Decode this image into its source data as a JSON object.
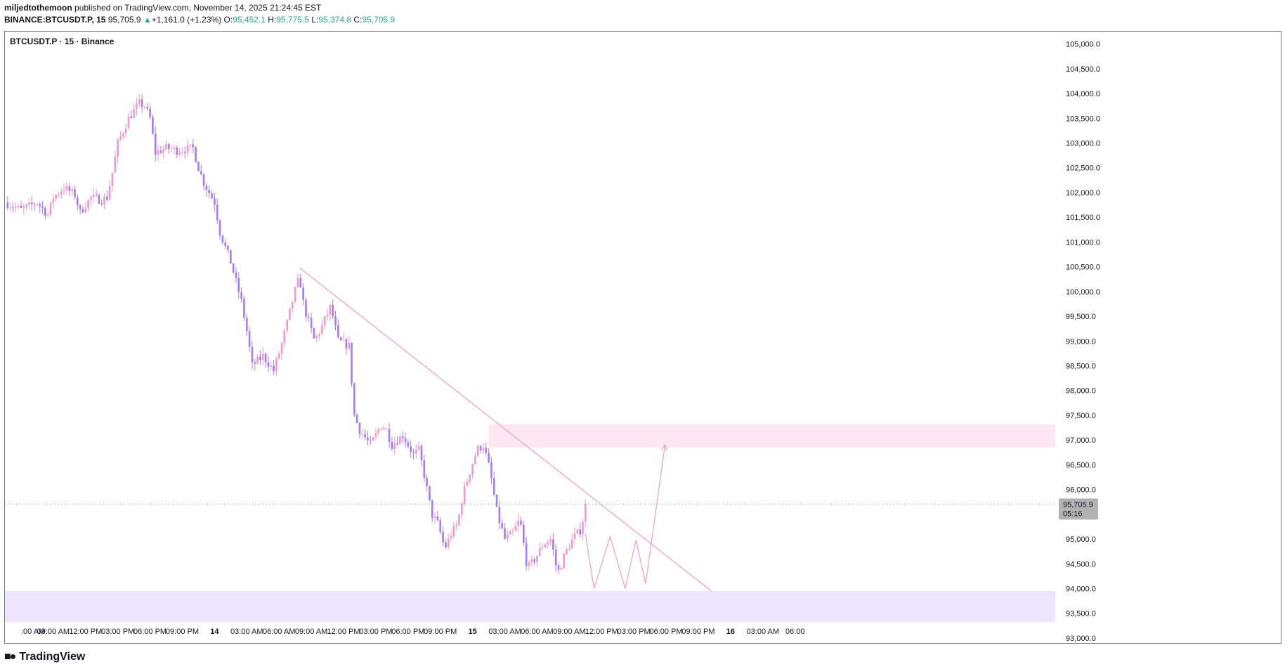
{
  "header": {
    "author": "miljedtothemoon",
    "published_text": "published on TradingView.com, November 14, 2025 21:24:45 EST",
    "symbol": "BINANCE:BTCUSDT.P, 15",
    "last": "95,705.9",
    "change_arrow": "▲",
    "change": "+1,161.0 (+1.23%)",
    "o_label": "O:",
    "o_value": "95,452.1",
    "h_label": "H:",
    "h_value": "95,775.5",
    "l_label": "L:",
    "l_value": "95,374.8",
    "c_label": "C:",
    "c_value": "95,705.9"
  },
  "footer": {
    "brand": "TradingView",
    "logo_icon": "tradingview-logo-icon"
  },
  "colors": {
    "candle_up": "#f29ac9",
    "candle_down": "#a67ef0",
    "trendline": "#f29ac9",
    "resistance_zone": "#fde7f1",
    "support_zone": "#ede5fc",
    "price_tag": "#b2b2b2",
    "grid_text": "#131722"
  },
  "chart_data": {
    "type": "candlestick",
    "title": "BTCUSDT.P · 15 · Binance",
    "timeframe": "15",
    "exchange": "Binance",
    "y_range": [
      92900,
      105250
    ],
    "y_ticks": [
      93000,
      93500,
      94000,
      94500,
      95000,
      95500,
      96000,
      96500,
      97000,
      97500,
      98000,
      98500,
      99000,
      99500,
      100000,
      100500,
      101000,
      101500,
      102000,
      102500,
      103000,
      103500,
      104000,
      104500,
      105000
    ],
    "y_tick_labels": [
      "93,000.0",
      "93,500.0",
      "94,000.0",
      "94,500.0",
      "95,000.0",
      "95,500.0",
      "96,000.0",
      "96,500.0",
      "97,000.0",
      "97,500.0",
      "98,000.0",
      "98,500.0",
      "99,000.0",
      "99,500.0",
      "100,000.0",
      "100,500.0",
      "101,000.0",
      "101,500.0",
      "102,000.0",
      "102,500.0",
      "103,000.0",
      "103,500.0",
      "104,000.0",
      "104,500.0",
      "105,000.0"
    ],
    "x_range_hours": [
      -19.5,
      78.2
    ],
    "x_ticks": [
      {
        "h": -18,
        "label": ":00 AM"
      },
      {
        "h": -15,
        "label": "09:00 AM"
      },
      {
        "h": -12,
        "label": "12:00 PM"
      },
      {
        "h": -9,
        "label": "03:00 PM"
      },
      {
        "h": -6,
        "label": "06:00 PM"
      },
      {
        "h": -3,
        "label": "09:00 PM"
      },
      {
        "h": 0,
        "label": "14",
        "bold": true
      },
      {
        "h": 3,
        "label": "03:00 AM"
      },
      {
        "h": 6,
        "label": "06:00 AM"
      },
      {
        "h": 9,
        "label": "09:00 AM"
      },
      {
        "h": 12,
        "label": "12:00 PM"
      },
      {
        "h": 15,
        "label": "03:00 PM"
      },
      {
        "h": 18,
        "label": "06:00 PM"
      },
      {
        "h": 21,
        "label": "09:00 PM"
      },
      {
        "h": 24,
        "label": "15",
        "bold": true
      },
      {
        "h": 27,
        "label": "03:00 AM"
      },
      {
        "h": 30,
        "label": "06:00 AM"
      },
      {
        "h": 33,
        "label": "09:00 AM"
      },
      {
        "h": 36,
        "label": "12:00 PM"
      },
      {
        "h": 39,
        "label": "03:00 PM"
      },
      {
        "h": 42,
        "label": "06:00 PM"
      },
      {
        "h": 45,
        "label": "09:00 PM"
      },
      {
        "h": 48,
        "label": "16",
        "bold": true
      },
      {
        "h": 51,
        "label": "03:00 AM"
      },
      {
        "h": 54,
        "label": "06:00"
      }
    ],
    "close_anchors": [
      [
        -19.5,
        101800
      ],
      [
        -18,
        101650
      ],
      [
        -16.5,
        101800
      ],
      [
        -15.5,
        101550
      ],
      [
        -15,
        101900
      ],
      [
        -14,
        102100
      ],
      [
        -13,
        101950
      ],
      [
        -12.5,
        101600
      ],
      [
        -11.5,
        101900
      ],
      [
        -10.5,
        101850
      ],
      [
        -10,
        101900
      ],
      [
        -9.5,
        102400
      ],
      [
        -9,
        103000
      ],
      [
        -8,
        103500
      ],
      [
        -7,
        103800
      ],
      [
        -6.5,
        103750
      ],
      [
        -6,
        103500
      ],
      [
        -5.5,
        102800
      ],
      [
        -4.5,
        102900
      ],
      [
        -3.5,
        102850
      ],
      [
        -2,
        102900
      ],
      [
        -1.5,
        102500
      ],
      [
        -1,
        102200
      ],
      [
        -0.5,
        102000
      ],
      [
        0,
        101800
      ],
      [
        0.5,
        101200
      ],
      [
        1.5,
        100600
      ],
      [
        2.5,
        99800
      ],
      [
        3,
        99200
      ],
      [
        3.5,
        98500
      ],
      [
        4.5,
        98700
      ],
      [
        5.5,
        98400
      ],
      [
        6.2,
        98900
      ],
      [
        6.8,
        99400
      ],
      [
        7.4,
        99950
      ],
      [
        7.9,
        100300
      ],
      [
        8.3,
        99700
      ],
      [
        9.3,
        99000
      ],
      [
        10,
        99300
      ],
      [
        10.8,
        99700
      ],
      [
        11.5,
        99000
      ],
      [
        12.5,
        98900
      ],
      [
        13,
        97500
      ],
      [
        13.5,
        97200
      ],
      [
        14.5,
        96900
      ],
      [
        15.5,
        97300
      ],
      [
        16,
        97200
      ],
      [
        16.5,
        96900
      ],
      [
        17.5,
        97100
      ],
      [
        18.5,
        96700
      ],
      [
        19,
        96800
      ],
      [
        19.5,
        96300
      ],
      [
        20.2,
        95500
      ],
      [
        20.8,
        95300
      ],
      [
        21.4,
        94800
      ],
      [
        22,
        95100
      ],
      [
        22.6,
        95300
      ],
      [
        23.1,
        95900
      ],
      [
        23.8,
        96400
      ],
      [
        24.4,
        96800
      ],
      [
        25,
        96900
      ],
      [
        25.6,
        96400
      ],
      [
        26.3,
        95500
      ],
      [
        27,
        95000
      ],
      [
        27.7,
        95100
      ],
      [
        28.4,
        95400
      ],
      [
        29.1,
        94400
      ],
      [
        29.8,
        94600
      ],
      [
        30.6,
        94900
      ],
      [
        31.3,
        95000
      ],
      [
        31.9,
        94300
      ],
      [
        32.6,
        94700
      ],
      [
        33.3,
        95000
      ],
      [
        34.1,
        95200
      ],
      [
        34.5,
        95705.9
      ]
    ],
    "projection": [
      {
        "h": 34.5,
        "price": 95100
      },
      {
        "h": 35.3,
        "price": 94000
      },
      {
        "h": 36.8,
        "price": 95050
      },
      {
        "h": 38.2,
        "price": 94000
      },
      {
        "h": 39.2,
        "price": 94980
      },
      {
        "h": 40.1,
        "price": 94100
      },
      {
        "h": 41.9,
        "price": 96900
      }
    ],
    "trendline": {
      "start": {
        "h": 7.9,
        "price": 100480
      },
      "end": {
        "h": 46.2,
        "price": 93950
      }
    },
    "resistance_zone": {
      "from_h": 25.5,
      "y_top": 97320,
      "y_bottom": 96850
    },
    "support_zone": {
      "from_h": -19.5,
      "y_top": 93950,
      "y_bottom": 93320
    },
    "last_price": {
      "value": 95705.9,
      "label": "95,705.9",
      "countdown": "05:16"
    }
  }
}
